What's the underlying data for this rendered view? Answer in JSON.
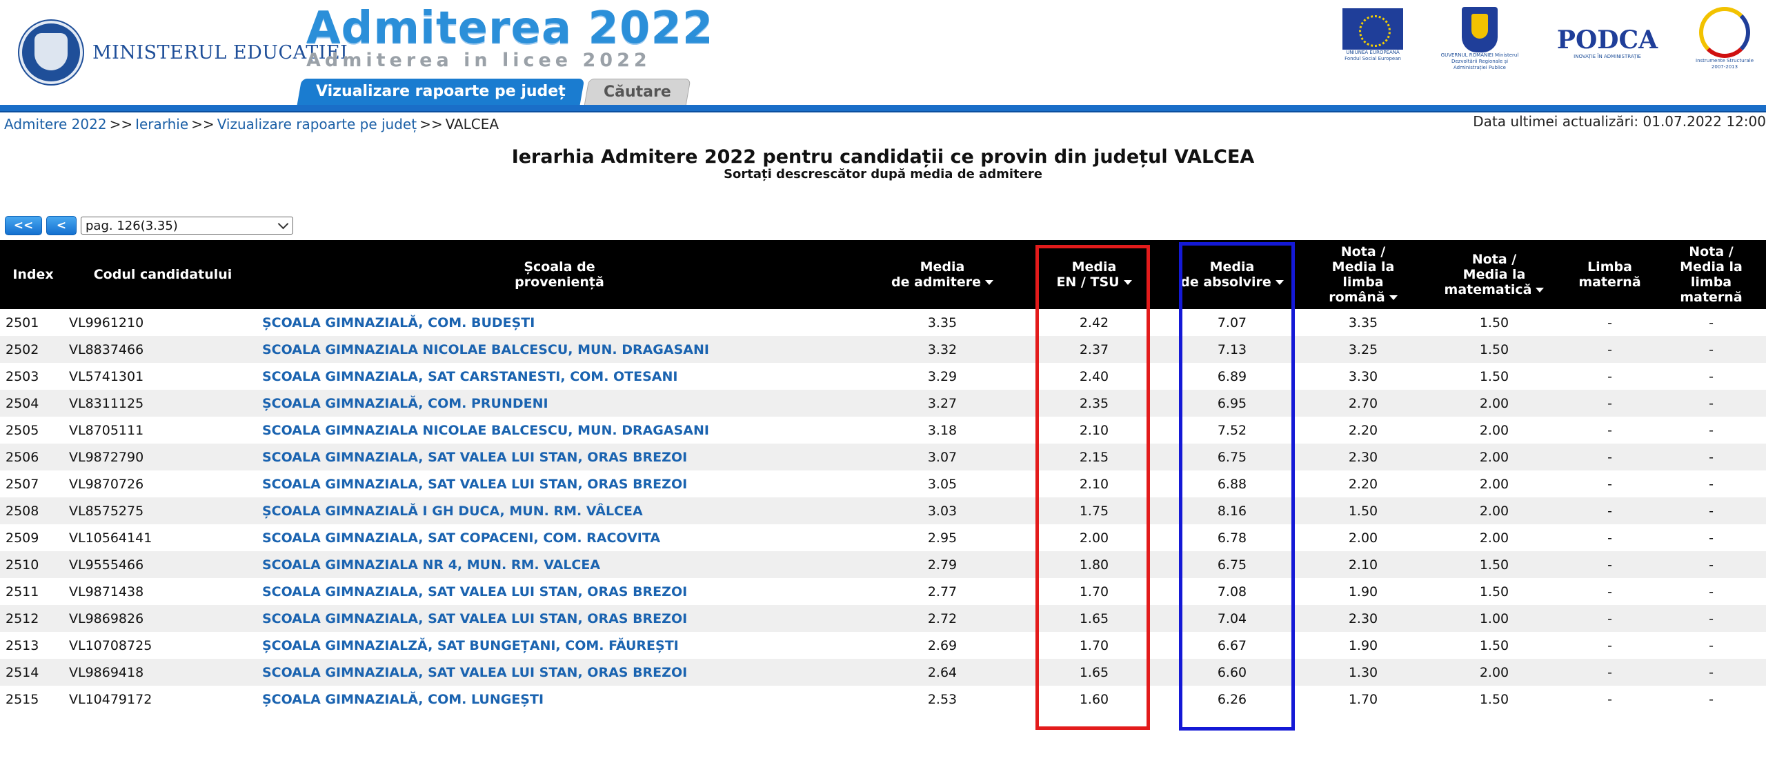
{
  "header": {
    "ministry": "MINISTERUL EDUCAȚIEI",
    "brand_title": "Admiterea 2022",
    "brand_subtitle": "Admiterea in licee 2022",
    "partners": {
      "eu": "UNIUNEA EUROPEANĂ Fondul Social European",
      "gov": "GUVERNUL ROMÂNIEI Ministerul Dezvoltării Regionale și Administrației Publice",
      "podca": "PODCA",
      "podca_tag": "INOVAȚIE ÎN ADMINISTRAȚIE",
      "instr": "Instrumente Structurale 2007-2013"
    }
  },
  "tabs": [
    {
      "label": "Vizualizare rapoarte pe județ",
      "active": true
    },
    {
      "label": "Căutare",
      "active": false
    }
  ],
  "breadcrumb": {
    "items": [
      "Admitere 2022",
      "Ierarhie",
      "Vizualizare rapoarte pe județ"
    ],
    "current": "VALCEA",
    "separator": ">>"
  },
  "last_update": "Data ultimei actualizări: 01.07.2022 12:00",
  "title": "Ierarhia Admitere 2022 pentru candidații ce provin din județul VALCEA",
  "subtitle": "Sortați descrescător după media de admitere",
  "pager": {
    "first": "<<",
    "prev": "<",
    "selected": "pag. 126(3.35)"
  },
  "table": {
    "headers": {
      "index": "Index",
      "code": "Codul candidatului",
      "school_1": "Școala de",
      "school_2": "proveniență",
      "adm_1": "Media",
      "adm_2": "de admitere",
      "en_1": "Media",
      "en_2": "EN / TSU",
      "abs_1": "Media",
      "abs_2": "de absolvire",
      "ro_1": "Nota /",
      "ro_2": "Media la",
      "ro_3": "limba",
      "ro_4": "română",
      "mat_1": "Nota /",
      "mat_2": "Media la",
      "mat_3": "matematică",
      "lm_1": "Limba",
      "lm_2": "maternă",
      "nlm_1": "Nota /",
      "nlm_2": "Media la",
      "nlm_3": "limba",
      "nlm_4": "maternă"
    },
    "rows": [
      [
        "2501",
        "VL9961210",
        "ȘCOALA GIMNAZIALĂ, COM. BUDEȘTI",
        "3.35",
        "2.42",
        "7.07",
        "3.35",
        "1.50",
        "-",
        "-"
      ],
      [
        "2502",
        "VL8837466",
        "SCOALA GIMNAZIALA NICOLAE BALCESCU, MUN. DRAGASANI",
        "3.32",
        "2.37",
        "7.13",
        "3.25",
        "1.50",
        "-",
        "-"
      ],
      [
        "2503",
        "VL5741301",
        "SCOALA GIMNAZIALA, SAT CARSTANESTI, COM. OTESANI",
        "3.29",
        "2.40",
        "6.89",
        "3.30",
        "1.50",
        "-",
        "-"
      ],
      [
        "2504",
        "VL8311125",
        "ȘCOALA GIMNAZIALĂ, COM. PRUNDENI",
        "3.27",
        "2.35",
        "6.95",
        "2.70",
        "2.00",
        "-",
        "-"
      ],
      [
        "2505",
        "VL8705111",
        "SCOALA GIMNAZIALA NICOLAE BALCESCU, MUN. DRAGASANI",
        "3.18",
        "2.10",
        "7.52",
        "2.20",
        "2.00",
        "-",
        "-"
      ],
      [
        "2506",
        "VL9872790",
        "SCOALA GIMNAZIALA, SAT VALEA LUI STAN, ORAS BREZOI",
        "3.07",
        "2.15",
        "6.75",
        "2.30",
        "2.00",
        "-",
        "-"
      ],
      [
        "2507",
        "VL9870726",
        "SCOALA GIMNAZIALA, SAT VALEA LUI STAN, ORAS BREZOI",
        "3.05",
        "2.10",
        "6.88",
        "2.20",
        "2.00",
        "-",
        "-"
      ],
      [
        "2508",
        "VL8575275",
        "ȘCOALA GIMNAZIALĂ I GH DUCA, MUN. RM. VÂLCEA",
        "3.03",
        "1.75",
        "8.16",
        "1.50",
        "2.00",
        "-",
        "-"
      ],
      [
        "2509",
        "VL10564141",
        "SCOALA GIMNAZIALA, SAT COPACENI, COM. RACOVITA",
        "2.95",
        "2.00",
        "6.78",
        "2.00",
        "2.00",
        "-",
        "-"
      ],
      [
        "2510",
        "VL9555466",
        "SCOALA GIMNAZIALA NR 4, MUN. RM. VALCEA",
        "2.79",
        "1.80",
        "6.75",
        "2.10",
        "1.50",
        "-",
        "-"
      ],
      [
        "2511",
        "VL9871438",
        "SCOALA GIMNAZIALA, SAT VALEA LUI STAN, ORAS BREZOI",
        "2.77",
        "1.70",
        "7.08",
        "1.90",
        "1.50",
        "-",
        "-"
      ],
      [
        "2512",
        "VL9869826",
        "SCOALA GIMNAZIALA, SAT VALEA LUI STAN, ORAS BREZOI",
        "2.72",
        "1.65",
        "7.04",
        "2.30",
        "1.00",
        "-",
        "-"
      ],
      [
        "2513",
        "VL10708725",
        "ȘCOALA GIMNAZIALZĂ, SAT BUNGEȚANI, COM. FĂUREȘTI",
        "2.69",
        "1.70",
        "6.67",
        "1.90",
        "1.50",
        "-",
        "-"
      ],
      [
        "2514",
        "VL9869418",
        "SCOALA GIMNAZIALA, SAT VALEA LUI STAN, ORAS BREZOI",
        "2.64",
        "1.65",
        "6.60",
        "1.30",
        "2.00",
        "-",
        "-"
      ],
      [
        "2515",
        "VL10479172",
        "ȘCOALA GIMNAZIALĂ, COM. LUNGEȘTI",
        "2.53",
        "1.60",
        "6.26",
        "1.70",
        "1.50",
        "-",
        "-"
      ]
    ]
  },
  "highlights": {
    "en_box_color": "#e31b1b",
    "abs_box_color": "#1419d6"
  }
}
